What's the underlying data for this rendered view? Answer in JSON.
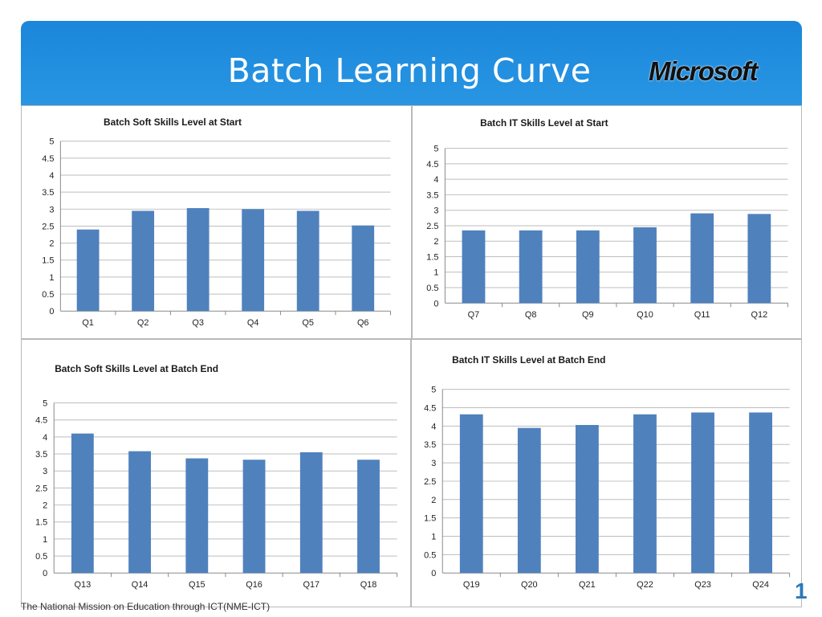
{
  "slide": {
    "title": "Batch Learning Curve",
    "logo_text": "Microsoft",
    "footer": "The National Mission on Education through ICT(NME-ICT)",
    "footer_deco": "1"
  },
  "colors": {
    "bar": "#4f81bd",
    "grid": "#bdbdbd",
    "axis": "#8a8a8a"
  },
  "chart_data": [
    {
      "type": "bar",
      "title": "Batch Soft Skills Level at Start",
      "categories": [
        "Q1",
        "Q2",
        "Q3",
        "Q4",
        "Q5",
        "Q6"
      ],
      "values": [
        2.4,
        2.95,
        3.03,
        3.0,
        2.95,
        2.52
      ],
      "yticks": [
        "0",
        "0.5",
        "1",
        "1.5",
        "2",
        "2.5",
        "3",
        "3.5",
        "4",
        "4.5",
        "5"
      ],
      "ylim": [
        0,
        5
      ],
      "xlabel": "",
      "ylabel": ""
    },
    {
      "type": "bar",
      "title": "Batch IT Skills Level at Start",
      "categories": [
        "Q7",
        "Q8",
        "Q9",
        "Q10",
        "Q11",
        "Q12"
      ],
      "values": [
        2.35,
        2.35,
        2.35,
        2.45,
        2.9,
        2.88
      ],
      "yticks": [
        "0",
        "0.5",
        "1",
        "1.5",
        "2",
        "2.5",
        "3",
        "3.5",
        "4",
        "4.5",
        "5"
      ],
      "ylim": [
        0,
        5
      ],
      "xlabel": "",
      "ylabel": ""
    },
    {
      "type": "bar",
      "title": "Batch Soft Skills Level at Batch End",
      "categories": [
        "Q13",
        "Q14",
        "Q15",
        "Q16",
        "Q17",
        "Q18"
      ],
      "values": [
        4.1,
        3.58,
        3.37,
        3.33,
        3.55,
        3.33
      ],
      "yticks": [
        "0",
        "0.5",
        "1",
        "1.5",
        "2",
        "2.5",
        "3",
        "3.5",
        "4",
        "4.5",
        "5"
      ],
      "ylim": [
        0,
        5
      ],
      "xlabel": "",
      "ylabel": ""
    },
    {
      "type": "bar",
      "title": "Batch IT Skills Level at Batch End",
      "categories": [
        "Q19",
        "Q20",
        "Q21",
        "Q22",
        "Q23",
        "Q24"
      ],
      "values": [
        4.32,
        3.95,
        4.03,
        4.32,
        4.37,
        4.37
      ],
      "yticks": [
        "0",
        "0.5",
        "1",
        "1.5",
        "2",
        "2.5",
        "3",
        "3.5",
        "4",
        "4.5",
        "5"
      ],
      "ylim": [
        0,
        5
      ],
      "xlabel": "",
      "ylabel": ""
    }
  ]
}
